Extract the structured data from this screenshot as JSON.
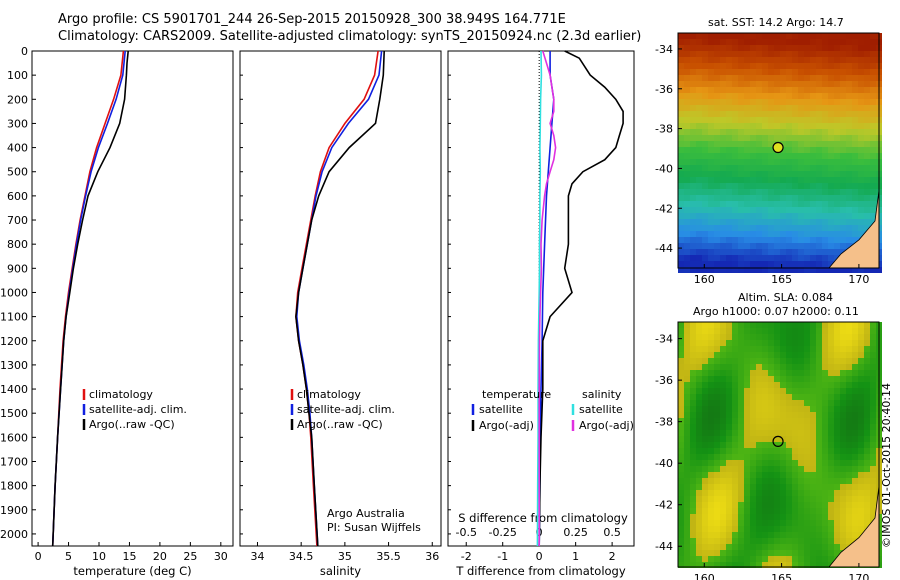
{
  "header": {
    "line1": "Argo profile: CS 5901701_244 26-Sep-2015 20150928_300 38.949S 164.771E",
    "line2": "Climatology: CARS2009. Satellite-adjusted climatology: synTS_20150924.nc (2.3d earlier)"
  },
  "colors": {
    "clim": "#e01010",
    "sat": "#1020e0",
    "argo": "#000000",
    "cyan": "#30e0e0",
    "magenta": "#e030e0"
  },
  "depth_ticks": [
    0,
    100,
    200,
    300,
    400,
    500,
    600,
    700,
    800,
    900,
    1000,
    1100,
    1200,
    1300,
    1400,
    1500,
    1600,
    1700,
    1800,
    1900,
    2000
  ],
  "chart_data": [
    {
      "type": "line",
      "panel": "temperature",
      "xlabel": "temperature (deg C)",
      "xlim": [
        -1,
        32
      ],
      "ylim": [
        2050,
        0
      ],
      "xticks": [
        0,
        5,
        10,
        15,
        20,
        25,
        30
      ],
      "legend": [
        "climatology",
        "satellite-adj. clim.",
        "Argo(..raw -QC)"
      ],
      "series": [
        {
          "name": "climatology",
          "depth": [
            0,
            100,
            200,
            300,
            400,
            500,
            600,
            700,
            800,
            900,
            1000,
            1100,
            1200,
            1400,
            1600,
            1800,
            2050
          ],
          "values": [
            14.0,
            13.6,
            12.4,
            11.0,
            9.6,
            8.5,
            7.7,
            6.9,
            6.2,
            5.6,
            5.0,
            4.5,
            4.1,
            3.6,
            3.2,
            2.8,
            2.4
          ]
        },
        {
          "name": "satellite-adj. clim.",
          "depth": [
            0,
            100,
            200,
            300,
            400,
            500,
            600,
            700,
            800,
            900,
            1000,
            1100,
            1200,
            1400,
            1600,
            1800,
            2050
          ],
          "values": [
            14.3,
            13.9,
            12.8,
            11.4,
            9.9,
            8.7,
            7.8,
            7.0,
            6.3,
            5.7,
            5.1,
            4.6,
            4.2,
            3.7,
            3.2,
            2.8,
            2.4
          ]
        },
        {
          "name": "Argo(..raw -QC)",
          "depth": [
            0,
            50,
            100,
            200,
            300,
            400,
            500,
            600,
            700,
            800,
            900,
            1000,
            1100,
            1200,
            1400,
            1600,
            1800,
            2050
          ],
          "values": [
            14.8,
            14.6,
            14.5,
            14.2,
            13.4,
            11.8,
            9.8,
            8.2,
            7.3,
            6.5,
            5.8,
            5.2,
            4.6,
            4.2,
            3.7,
            3.2,
            2.8,
            2.4
          ]
        }
      ]
    },
    {
      "type": "line",
      "panel": "salinity",
      "xlabel": "salinity",
      "xlim": [
        33.8,
        36.1
      ],
      "ylim": [
        2050,
        0
      ],
      "xticks": [
        34,
        34.5,
        35,
        35.5,
        36
      ],
      "legend": [
        "climatology",
        "satellite-adj. clim.",
        "Argo(..raw -QC)"
      ],
      "series": [
        {
          "name": "climatology",
          "depth": [
            0,
            100,
            200,
            300,
            400,
            500,
            600,
            700,
            800,
            900,
            1000,
            1100,
            1200,
            1300,
            1400,
            1500,
            1600,
            1800,
            2050
          ],
          "values": [
            35.38,
            35.34,
            35.22,
            35.0,
            34.82,
            34.72,
            34.66,
            34.61,
            34.56,
            34.51,
            34.46,
            34.44,
            34.47,
            34.52,
            34.56,
            34.59,
            34.61,
            34.64,
            34.68
          ]
        },
        {
          "name": "satellite-adj. clim.",
          "depth": [
            0,
            100,
            200,
            300,
            400,
            500,
            600,
            700,
            800,
            900,
            1000,
            1100,
            1200,
            1300,
            1400,
            1500,
            1600,
            1800,
            2050
          ],
          "values": [
            35.42,
            35.39,
            35.27,
            35.04,
            34.85,
            34.74,
            34.67,
            34.62,
            34.57,
            34.52,
            34.47,
            34.45,
            34.48,
            34.53,
            34.57,
            34.6,
            34.62,
            34.65,
            34.69
          ]
        },
        {
          "name": "Argo(..raw -QC)",
          "depth": [
            0,
            100,
            200,
            300,
            400,
            500,
            600,
            700,
            800,
            900,
            1000,
            1100,
            1200,
            1300,
            1400,
            1500,
            1600,
            1800,
            2050
          ],
          "values": [
            35.45,
            35.44,
            35.4,
            35.35,
            35.05,
            34.82,
            34.7,
            34.62,
            34.57,
            34.52,
            34.47,
            34.44,
            34.47,
            34.52,
            34.56,
            34.59,
            34.62,
            34.65,
            34.69
          ]
        }
      ],
      "annotation": [
        "Argo Australia",
        "PI: Susan Wijffels"
      ]
    },
    {
      "type": "line",
      "panel": "differences",
      "xlabel": "T difference from climatology",
      "xlabel_top": "S difference from climatology",
      "xlim": [
        -2.5,
        2.6
      ],
      "ylim": [
        2050,
        0
      ],
      "xticks": [
        -2,
        -1,
        0,
        1,
        2
      ],
      "xticks_top": [
        -0.5,
        -0.25,
        0,
        0.25,
        0.5
      ],
      "xlim_top": [
        -0.625,
        0.65
      ],
      "legend_left_title": "temperature",
      "legend_right_title": "salinity",
      "legend": [
        "satellite",
        "Argo(-adj)",
        "satellite",
        "Argo(-adj)"
      ],
      "series": [
        {
          "name": "satellite",
          "quantity": "temperature",
          "depth": [
            0,
            50,
            100,
            200,
            300,
            400,
            500,
            600,
            800,
            1000,
            1200,
            1400,
            1600,
            1800,
            2050
          ],
          "values": [
            0.3,
            0.3,
            0.3,
            0.4,
            0.35,
            0.3,
            0.25,
            0.2,
            0.15,
            0.1,
            0.08,
            0.05,
            0.03,
            0.02,
            0.0
          ]
        },
        {
          "name": "Argo(-adj)",
          "quantity": "temperature",
          "depth": [
            0,
            30,
            100,
            150,
            200,
            250,
            300,
            350,
            400,
            450,
            500,
            550,
            600,
            700,
            800,
            900,
            1000,
            1100,
            1200,
            1400,
            1600,
            1800,
            2050
          ],
          "values": [
            0.7,
            1.1,
            1.4,
            1.8,
            2.1,
            2.3,
            2.3,
            2.2,
            2.1,
            1.8,
            1.2,
            0.9,
            0.8,
            0.8,
            0.8,
            0.7,
            0.9,
            0.3,
            0.1,
            0.1,
            0.05,
            0.02,
            0.0
          ]
        },
        {
          "name": "satellite",
          "quantity": "salinity",
          "depth": [
            0,
            100,
            200,
            300,
            400,
            500,
            600,
            700,
            800,
            900,
            1000,
            1200,
            1400,
            1600,
            1800,
            2050
          ],
          "values": [
            0.05,
            0.06,
            0.04,
            0.03,
            0.02,
            0.03,
            0.02,
            0.02,
            0.01,
            0.01,
            0.0,
            -0.02,
            -0.03,
            -0.03,
            -0.04,
            -0.05
          ]
        },
        {
          "name": "Argo(-adj)",
          "quantity": "salinity",
          "depth": [
            0,
            50,
            100,
            150,
            200,
            250,
            300,
            350,
            400,
            450,
            500,
            550,
            600,
            700,
            800,
            900,
            1000,
            1100,
            1200,
            1400,
            1600,
            1800,
            2050
          ],
          "values": [
            0.1,
            0.2,
            0.3,
            0.35,
            0.4,
            0.4,
            0.3,
            0.4,
            0.45,
            0.4,
            0.3,
            0.2,
            0.15,
            0.08,
            0.05,
            0.06,
            0.04,
            0.02,
            0.01,
            0.0,
            0.0,
            0.0,
            0.0
          ]
        }
      ]
    },
    {
      "type": "heatmap",
      "panel": "map-sst",
      "title": "sat. SST: 14.2 Argo: 14.7",
      "xticks": [
        160,
        165,
        170
      ],
      "yticks": [
        -34,
        -36,
        -38,
        -40,
        -42,
        -44
      ],
      "xlim": [
        158.3,
        171.3
      ],
      "ylim": [
        -45,
        -33.2
      ],
      "marker": {
        "lon": 164.771,
        "lat": -38.949
      }
    },
    {
      "type": "heatmap",
      "panel": "map-sla",
      "title": [
        "Altim. SLA: 0.084",
        "Argo h1000: 0.07 h2000: 0.11"
      ],
      "xticks": [
        160,
        165,
        170
      ],
      "yticks": [
        -34,
        -36,
        -38,
        -40,
        -42,
        -44
      ],
      "xlim": [
        158.3,
        171.3
      ],
      "ylim": [
        -45,
        -33.2
      ],
      "marker": {
        "lon": 164.771,
        "lat": -38.949
      }
    }
  ],
  "footer": {
    "stamp": "©IMOS 01-Oct-2015 20:40:14"
  }
}
